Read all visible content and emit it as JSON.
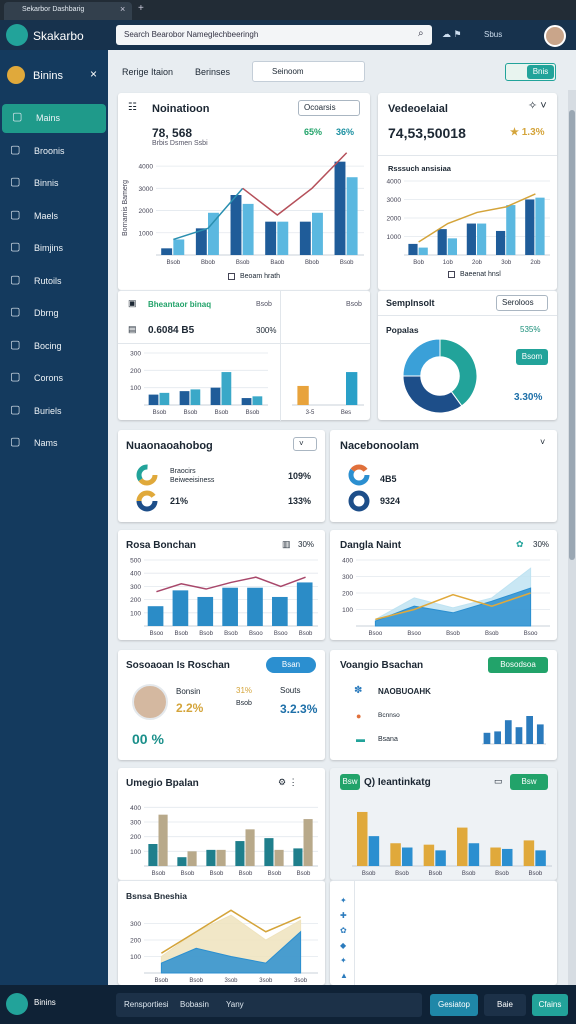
{
  "browser": {
    "tab": "Sekarbor Dashbarig",
    "search": "Search Bearobor Nameglechbeeringh",
    "user": "Sbus"
  },
  "brand": "Skakarbo",
  "sidebar": {
    "title": "Binins",
    "items": [
      "Mains",
      "Broonis",
      "Binnis",
      "Maels",
      "Bimjins",
      "Rutoils",
      "Dbrng",
      "Bocing",
      "Corons",
      "Buriels",
      "Nams"
    ],
    "footer": "Binins"
  },
  "toolbar": {
    "title": "Rerige Itaion",
    "filter": "Berinses",
    "search": "Seinoom",
    "button": "Bnis"
  },
  "cards": {
    "c1": {
      "title": "Noinatioon",
      "dropdown": "Ocoarsis",
      "value": "78, 568",
      "note": "Brbis Dsmen Ssbi",
      "stat1": "65%",
      "stat2": "36%",
      "ylabel": "Bornamis Bamerg",
      "legend": "Beoam hrath",
      "chart": {
        "type": "bar",
        "categories": [
          "Bsob",
          "Bbob",
          "Bsob",
          "Baob",
          "Bbob",
          "Bsob"
        ],
        "ylim": [
          0,
          4500
        ],
        "yticks": [
          1000,
          2000,
          3000,
          4000
        ],
        "series": [
          {
            "kind": "bar",
            "color": "#1f5c99",
            "values": [
              300,
              1200,
              2700,
              1500,
              1500,
              4200
            ]
          },
          {
            "kind": "bar",
            "color": "#5bb8e0",
            "values": [
              700,
              1900,
              2300,
              1500,
              1900,
              3500
            ]
          },
          {
            "kind": "line",
            "color": "#2a8fb0",
            "values": [
              700,
              1200,
              3000,
              null,
              null,
              null
            ]
          },
          {
            "kind": "line",
            "color": "#b5505a",
            "values": [
              null,
              null,
              3000,
              1800,
              3000,
              4600
            ]
          }
        ]
      }
    },
    "c2": {
      "title": "Vedeoelaial",
      "value": "74,53,50018",
      "stat": "★ 1.3%",
      "note": "Rsssuch ansisiaa",
      "legend": "Baeenat hnsl",
      "chart": {
        "type": "bar",
        "categories": [
          "Bob",
          "1ob",
          "2ob",
          "3ob",
          "2ob"
        ],
        "ylim": [
          0,
          4000
        ],
        "yticks": [
          1000,
          2000,
          3000,
          4000
        ],
        "series": [
          {
            "kind": "bar",
            "color": "#1f5c99",
            "values": [
              600,
              1400,
              1700,
              1300,
              3000
            ]
          },
          {
            "kind": "bar",
            "color": "#5bb8e0",
            "values": [
              400,
              900,
              1700,
              2700,
              3100
            ]
          },
          {
            "kind": "line",
            "color": "#d4a43a",
            "values": [
              700,
              1700,
              2300,
              2600,
              3300
            ]
          }
        ]
      }
    },
    "c3": {
      "title": "Bheantaor binaq",
      "col1": "Bsob",
      "col2": "Bsob",
      "value": "0.6084 B5",
      "stat": "300%",
      "chartA": {
        "type": "bar",
        "categories": [
          "Bsob",
          "Bsob",
          "Bsob",
          "Bsob"
        ],
        "ylim": [
          0,
          300
        ],
        "yticks": [
          100,
          200,
          300
        ],
        "series": [
          {
            "kind": "bar",
            "color": "#1f5c99",
            "values": [
              60,
              80,
              100,
              40
            ]
          },
          {
            "kind": "bar",
            "color": "#3aa8c8",
            "values": [
              70,
              90,
              190,
              50
            ]
          }
        ]
      },
      "chartB": {
        "type": "bar",
        "categories": [
          "3-5",
          "Bes"
        ],
        "ylim": [
          0,
          300
        ],
        "series": [
          {
            "kind": "bar",
            "color": "#e8a33c",
            "values": [
              110,
              null
            ]
          },
          {
            "kind": "bar",
            "color": "#2aa0c8",
            "values": [
              null,
              190
            ]
          }
        ]
      }
    },
    "c4": {
      "title": "Semplnsolt",
      "dropdown": "Seroloos",
      "label": "Popalas",
      "stat": "535%",
      "button": "Bsom",
      "total": "3.30%",
      "chart": {
        "type": "donut",
        "values": [
          40,
          35,
          25
        ],
        "colors": [
          "#22a39a",
          "#1d4e89",
          "#3aa0d8"
        ]
      }
    },
    "c5": {
      "title": "Nuaonaoahobog",
      "row1a": "Braocirs",
      "row1b": "Beiweeisiness",
      "row1v": "109%",
      "row2a": "21%",
      "row2v": "133%"
    },
    "c6": {
      "title": "Nacebonoolam",
      "row1": "4B5",
      "row2": "9324"
    },
    "c7": {
      "title": "Rosa Bonchan",
      "stat": "30%",
      "chart": {
        "type": "bar",
        "categories": [
          "Bsoo",
          "Bsob",
          "Bsob",
          "Bsob",
          "Bsoo",
          "Bsoo",
          "Bsob"
        ],
        "ylim": [
          0,
          500
        ],
        "yticks": [
          100,
          200,
          300,
          400,
          500
        ],
        "series": [
          {
            "kind": "bar",
            "color": "#2b8cc7",
            "values": [
              150,
              270,
              220,
              290,
              290,
              220,
              330
            ]
          },
          {
            "kind": "line",
            "color": "#a8476a",
            "values": [
              260,
              320,
              280,
              330,
              370,
              300,
              370
            ]
          }
        ]
      }
    },
    "c8": {
      "title": "Dangla Naint",
      "stat": "30%",
      "chart": {
        "type": "area",
        "categories": [
          "Bsoo",
          "Bsoo",
          "Bsob",
          "Bsob",
          "Bsoo"
        ],
        "ylim": [
          0,
          400
        ],
        "yticks": [
          100,
          200,
          300,
          400
        ],
        "series": [
          {
            "kind": "area",
            "color": "#bfe3f2",
            "values": [
              40,
              170,
              110,
              170,
              350
            ]
          },
          {
            "kind": "area",
            "color": "#2b8fd0",
            "values": [
              30,
              120,
              80,
              150,
              230
            ]
          },
          {
            "kind": "line",
            "color": "#e0a93b",
            "values": [
              40,
              100,
              190,
              120,
              200
            ]
          }
        ]
      }
    },
    "c9": {
      "title": "Sosoaoan Is Roschan",
      "button": "Bsan",
      "name": "Bonsin",
      "big": "2.2%",
      "mid": "31%",
      "midNote": "Bsob",
      "right": "Souts",
      "rightBig": "3.2.3%",
      "foot": "00 %"
    },
    "c10": {
      "title": "Voangio Bsachan",
      "button": "Bosodsoa",
      "row1": "NAOBUOAHK",
      "row2": "Bcnnso",
      "row3": "Bsana",
      "chart": {
        "type": "bar",
        "ylim": [
          0,
          100
        ],
        "series": [
          {
            "kind": "bar",
            "color": "#2b7bbd",
            "values": [
              40,
              45,
              85,
              60,
              100,
              70
            ]
          }
        ]
      }
    },
    "c11": {
      "title": "Umegio Bpalan",
      "chart": {
        "type": "bar",
        "categories": [
          "Bsob",
          "Bsob",
          "Bsob",
          "Bsob",
          "Bsob",
          "Bsob"
        ],
        "ylim": [
          0,
          450
        ],
        "yticks": [
          100,
          200,
          300,
          400
        ],
        "series": [
          {
            "kind": "bar",
            "color": "#1f7f8c",
            "values": [
              150,
              60,
              110,
              170,
              190,
              120
            ]
          },
          {
            "kind": "bar",
            "color": "#b8a98a",
            "values": [
              350,
              100,
              110,
              250,
              110,
              320
            ]
          }
        ]
      }
    },
    "c12": {
      "tag": "Bsw",
      "title": "Q) Ieantinkatg",
      "button": "Bsw",
      "chart": {
        "type": "bar",
        "categories": [
          "Bsob",
          "Bsob",
          "Bsob",
          "Bsob",
          "Bsob",
          "Bsob"
        ],
        "ylim": [
          0,
          450
        ],
        "series": [
          {
            "kind": "bar",
            "color": "#e0a93b",
            "values": [
              380,
              160,
              150,
              270,
              130,
              180
            ]
          },
          {
            "kind": "bar",
            "color": "#2b8fd0",
            "values": [
              210,
              130,
              110,
              160,
              120,
              110
            ]
          }
        ]
      }
    },
    "c13": {
      "title": "Bsnsa Bneshia",
      "chart": {
        "type": "area",
        "categories": [
          "Bsob",
          "Bsob",
          "3sob",
          "3sob",
          "3sob"
        ],
        "ylim": [
          0,
          400
        ],
        "yticks": [
          100,
          200,
          300
        ],
        "series": [
          {
            "kind": "area",
            "color": "#efe3bd",
            "values": [
              100,
              250,
              350,
              200,
              320
            ]
          },
          {
            "kind": "area",
            "color": "#2b8fd0",
            "values": [
              60,
              150,
              100,
              60,
              250
            ]
          },
          {
            "kind": "line",
            "color": "#d4a43a",
            "values": [
              120,
              250,
              380,
              250,
              340
            ]
          }
        ]
      }
    }
  },
  "footer": {
    "input": "Rensportiesi",
    "field1": "Bobasin",
    "field2": "Yany",
    "button1": "Gesiatop",
    "button2": "Baie",
    "button3": "Cfains"
  }
}
